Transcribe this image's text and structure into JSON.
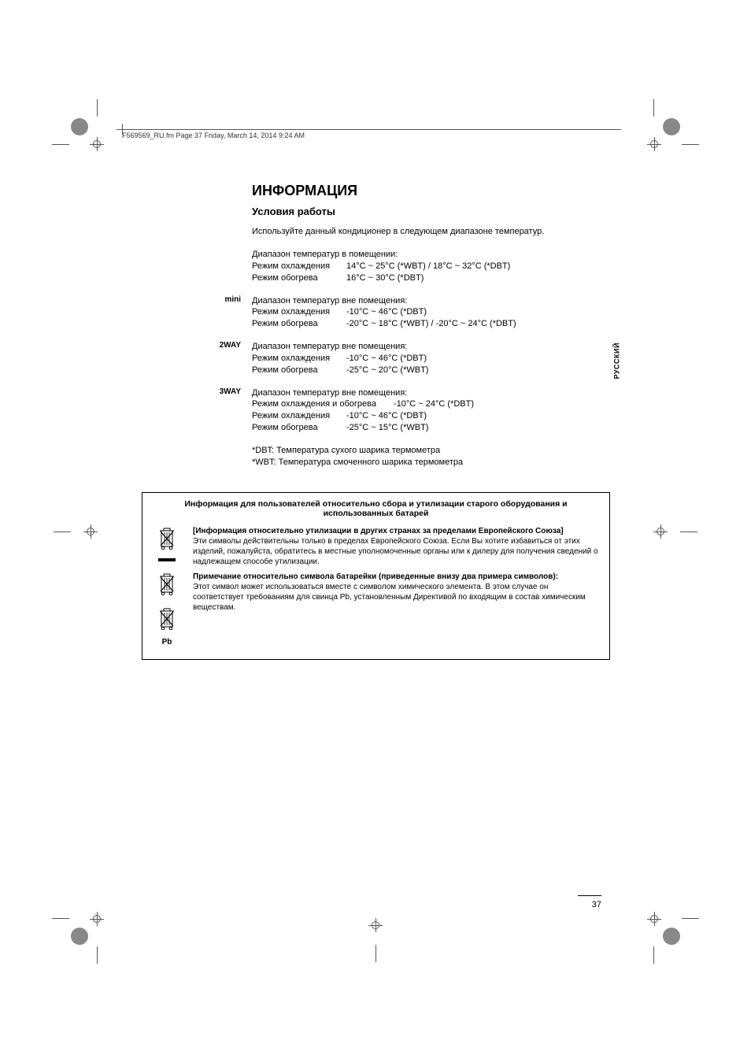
{
  "header": {
    "label": "F569569_RU.fm Page 37 Friday, March 14, 2014 9:24 AM"
  },
  "title": "ИНФОРМАЦИЯ",
  "subtitle": "Условия работы",
  "intro": "Используйте данный кондиционер в следующем диапазоне температур.",
  "sections": [
    {
      "label": "",
      "heading": "Диапазон температур в помещении:",
      "rows": [
        {
          "mode": "Режим охлаждения",
          "range": "14°C ~ 25°C (*WBT) / 18°C ~ 32°C (*DBT)"
        },
        {
          "mode": "Режим обогрева",
          "range": "16°C ~ 30°C (*DBT)"
        }
      ]
    },
    {
      "label": "mini",
      "heading": "Диапазон температур вне помещения:",
      "rows": [
        {
          "mode": "Режим охлаждения",
          "range": "-10°C ~ 46°C (*DBT)"
        },
        {
          "mode": "Режим обогрева",
          "range": "-20°C ~ 18°C (*WBT) / -20°C ~ 24°C (*DBT)"
        }
      ]
    },
    {
      "label": "2WAY",
      "heading": "Диапазон температур вне помещения:",
      "rows": [
        {
          "mode": "Режим охлаждения",
          "range": "-10°C ~ 46°C (*DBT)"
        },
        {
          "mode": "Режим обогрева",
          "range": "-25°C ~ 20°C (*WBT)"
        }
      ]
    },
    {
      "label": "3WAY",
      "heading": "Диапазон температур вне помещения:",
      "rows": [
        {
          "mode_wide": "Режим охлаждения и обогрева",
          "range": "-10°C ~ 24°C (*DBT)"
        },
        {
          "mode": "Режим охлаждения",
          "range": "-10°C ~ 46°C (*DBT)"
        },
        {
          "mode": "Режим обогрева",
          "range": "-25°C ~ 15°C (*WBT)"
        }
      ]
    }
  ],
  "notes": [
    "*DBT: Температура сухого шарика термометра",
    "*WBT: Температура смоченного шарика термометра"
  ],
  "info_box": {
    "title": "Информация для пользователей относительно сбора и утилизации старого оборудования и использованных батарей",
    "sections": [
      {
        "bold": "[Информация относительно утилизации в других странах за пределами Европейского Союза]",
        "text": "Эти символы действительны только в пределах Европейского Союза. Если Вы хотите избавиться от этих изделий, пожалуйста, обратитесь в местные уполномоченные органы или к дилеру для получения сведений о надлежащем способе утилизации."
      },
      {
        "bold": "Примечание относительно символа батарейки (приведенные внизу два примера символов):",
        "text": "Этот символ может использоваться вместе с символом химического элемента. В этом случае он соответствует требованиям для свинца Pb, установленным Директивой по входящим в состав химическим веществам."
      }
    ],
    "pb_label": "Pb"
  },
  "side_tab": "РУССКИЙ",
  "page_number": "37",
  "colors": {
    "text": "#000000",
    "background": "#ffffff",
    "crop_gray": "#888888",
    "line_gray": "#555555"
  }
}
